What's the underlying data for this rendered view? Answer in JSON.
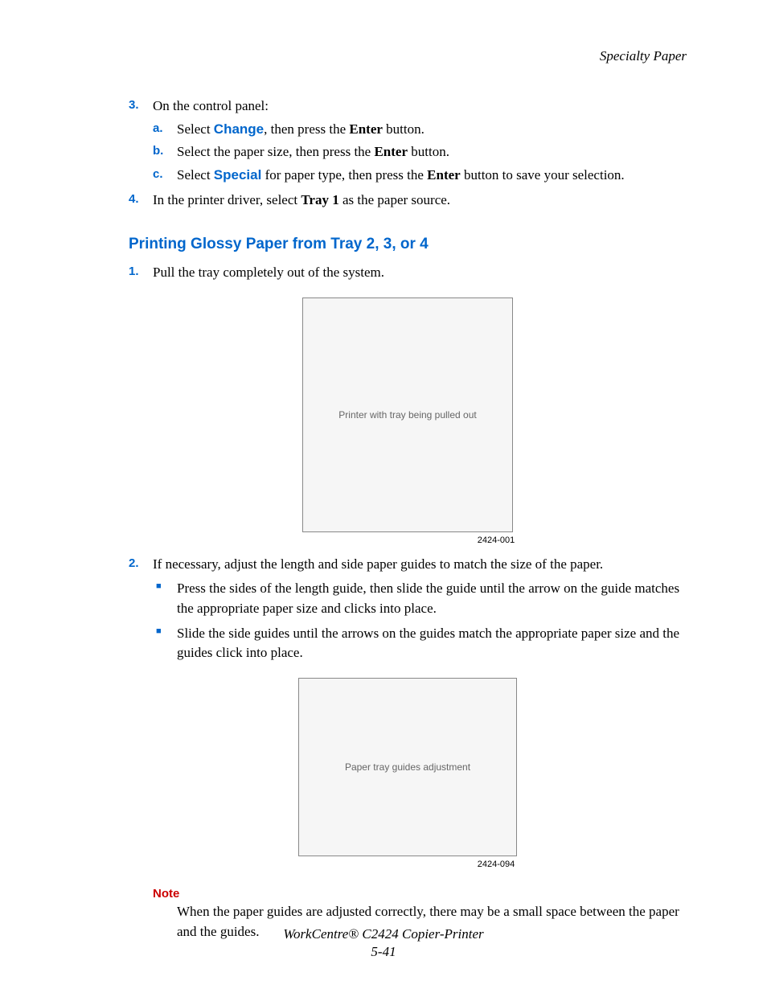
{
  "header": {
    "text": "Specialty Paper"
  },
  "colors": {
    "accent_blue": "#0066cc",
    "note_red": "#cc0000",
    "body_text": "#000000",
    "background": "#ffffff"
  },
  "typography": {
    "body_font": "Times New Roman",
    "ui_font": "Arial",
    "body_size_pt": 12,
    "heading_size_pt": 14
  },
  "steps_top": [
    {
      "marker": "3.",
      "text": "On the control panel:",
      "substeps": [
        {
          "marker": "a.",
          "prefix": "Select ",
          "keyword_blue": "Change",
          "mid": ", then press the ",
          "keyword_bold": "Enter",
          "suffix": " button."
        },
        {
          "marker": "b.",
          "prefix": "Select the paper size, then press the ",
          "keyword_blue": "",
          "mid": "",
          "keyword_bold": "Enter",
          "suffix": " button."
        },
        {
          "marker": "c.",
          "prefix": "Select ",
          "keyword_blue": "Special",
          "mid": " for paper type, then press the ",
          "keyword_bold": "Enter",
          "suffix": " button to save your selection."
        }
      ]
    },
    {
      "marker": "4.",
      "prefix": "In the printer driver, select ",
      "keyword_bold": "Tray 1",
      "suffix": " as the paper source."
    }
  ],
  "section_heading": "Printing Glossy Paper from Tray 2, 3, or 4",
  "steps_section": [
    {
      "marker": "1.",
      "text": "Pull the tray completely out of the system."
    },
    {
      "marker": "2.",
      "text": "If necessary, adjust the length and side paper guides to match the size of the paper.",
      "bullets": [
        "Press the sides of the length guide, then slide the guide until the arrow on the guide matches the appropriate paper size and clicks into place.",
        "Slide the side guides until the arrows on the guides match the appropriate paper size and the guides click into place."
      ]
    }
  ],
  "figures": [
    {
      "label": "2424-001",
      "alt": "Printer with tray being pulled out"
    },
    {
      "label": "2424-094",
      "alt": "Paper tray guides adjustment"
    }
  ],
  "note": {
    "heading": "Note",
    "body": "When the paper guides are adjusted correctly, there may be a small space between the paper and the guides."
  },
  "footer": {
    "line1": "WorkCentre® C2424 Copier-Printer",
    "line2": "5-41"
  }
}
